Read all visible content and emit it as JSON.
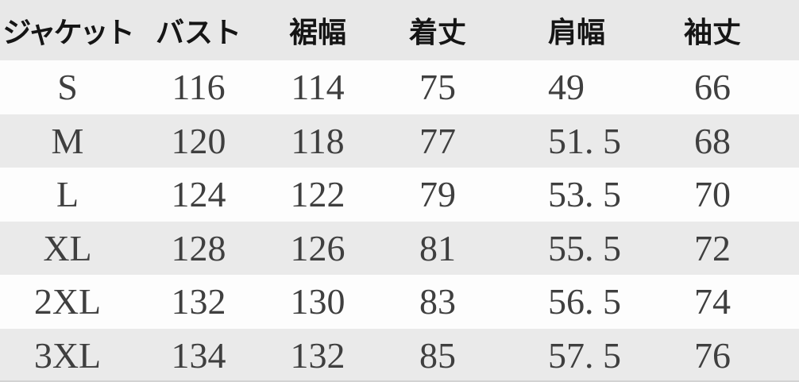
{
  "table": {
    "columns": [
      "ジャケット",
      "バスト",
      "裾幅",
      "着丈",
      "肩幅",
      "袖丈"
    ],
    "rows": [
      [
        "S",
        "116",
        "114",
        "75",
        "49",
        "66"
      ],
      [
        "M",
        "120",
        "118",
        "77",
        "51. 5",
        "68"
      ],
      [
        "L",
        "124",
        "122",
        "79",
        "53. 5",
        "70"
      ],
      [
        "XL",
        "128",
        "126",
        "81",
        "55. 5",
        "72"
      ],
      [
        "2XL",
        "132",
        "130",
        "83",
        "56. 5",
        "74"
      ],
      [
        "3XL",
        "134",
        "132",
        "85",
        "57. 5",
        "76"
      ]
    ]
  },
  "chart_data": {
    "type": "table",
    "title": "ジャケット",
    "columns": [
      "ジャケット",
      "バスト",
      "裾幅",
      "着丈",
      "肩幅",
      "袖丈"
    ],
    "rows": [
      {
        "ジャケット": "S",
        "バスト": 116,
        "裾幅": 114,
        "着丈": 75,
        "肩幅": 49,
        "袖丈": 66
      },
      {
        "ジャケット": "M",
        "バスト": 120,
        "裾幅": 118,
        "着丈": 77,
        "肩幅": 51.5,
        "袖丈": 68
      },
      {
        "ジャケット": "L",
        "バスト": 124,
        "裾幅": 122,
        "着丈": 79,
        "肩幅": 53.5,
        "袖丈": 70
      },
      {
        "ジャケット": "XL",
        "バスト": 128,
        "裾幅": 126,
        "着丈": 81,
        "肩幅": 55.5,
        "袖丈": 72
      },
      {
        "ジャケット": "2XL",
        "バスト": 132,
        "裾幅": 130,
        "着丈": 83,
        "肩幅": 56.5,
        "袖丈": 74
      },
      {
        "ジャケット": "3XL",
        "バスト": 134,
        "裾幅": 132,
        "着丈": 85,
        "肩幅": 57.5,
        "袖丈": 76
      }
    ],
    "layout": {
      "striped_rows": true,
      "header_background": "#e8e8e8",
      "stripe_background": "#eaeaea",
      "white_row_background": "#fdfdfd"
    }
  },
  "colors": {
    "header_background": "#e8e8e8",
    "stripe_gray": "#eaeaea",
    "row_white": "#fdfdfd",
    "header_text": "#151515",
    "cell_text": "#3f3f3f"
  }
}
